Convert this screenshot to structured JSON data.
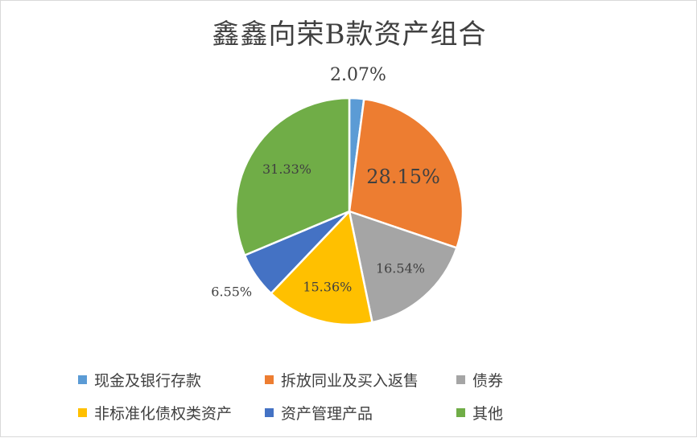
{
  "chart_data": {
    "type": "pie",
    "title": "鑫鑫向荣B款资产组合",
    "legend_position": "bottom",
    "slices": [
      {
        "label": "现金及银行存款",
        "value": 2.07,
        "display": "2.07%",
        "color": "#5B9BD5"
      },
      {
        "label": "拆放同业及买入返售",
        "value": 28.15,
        "display": "28.15%",
        "color": "#ED7D31"
      },
      {
        "label": "债券",
        "value": 16.54,
        "display": "16.54%",
        "color": "#A5A5A5"
      },
      {
        "label": "非标准化债权类资产",
        "value": 15.36,
        "display": "15.36%",
        "color": "#FFC000"
      },
      {
        "label": "资产管理产品",
        "value": 6.55,
        "display": "6.55%",
        "color": "#4472C4"
      },
      {
        "label": "其他",
        "value": 31.33,
        "display": "31.33%",
        "color": "#70AD47"
      }
    ]
  }
}
